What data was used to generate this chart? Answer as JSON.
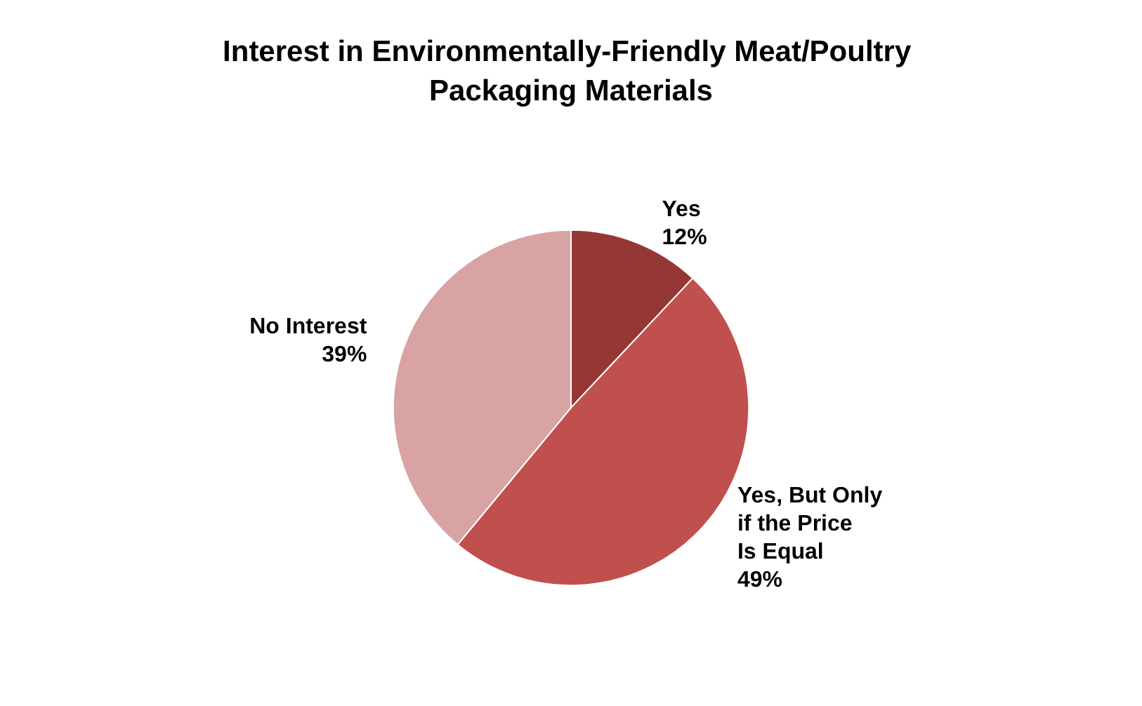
{
  "chart_data": {
    "type": "pie",
    "title": "Interest in Environmentally-Friendly Meat/Poultry Packaging Materials",
    "categories": [
      "Yes",
      "Yes, But Only if the Price Is Equal",
      "No Interest"
    ],
    "values": [
      12,
      49,
      39
    ],
    "colors": [
      "#953735",
      "#c0504d",
      "#d9a3a3"
    ],
    "value_labels": [
      "12%",
      "49%",
      "39%"
    ],
    "legend": false
  }
}
